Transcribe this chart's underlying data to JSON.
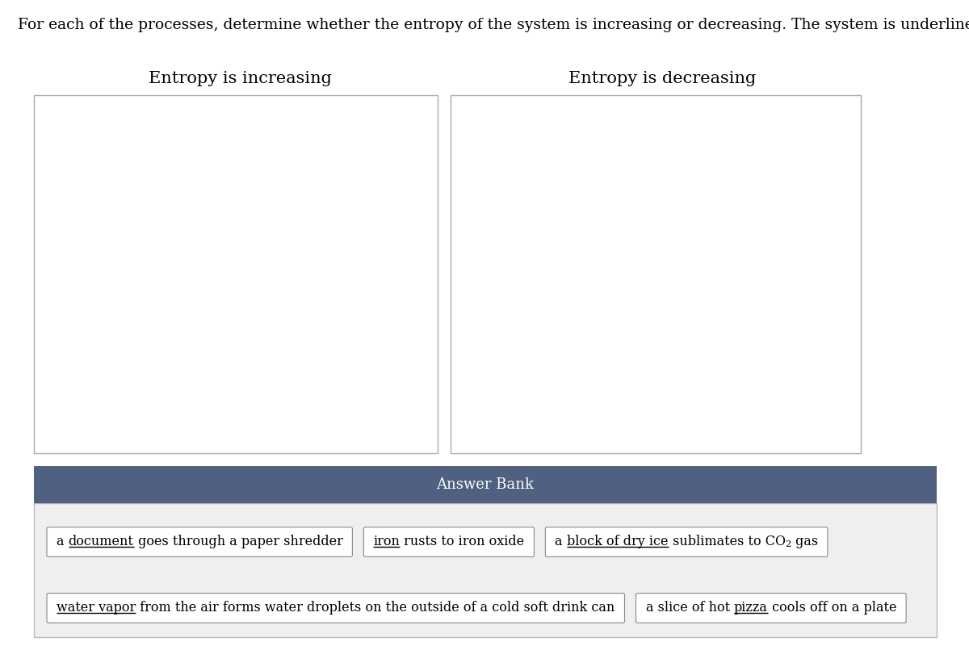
{
  "title": "For each of the processes, determine whether the entropy of the system is increasing or decreasing. The system is underlined.",
  "col1_title": "Entropy is increasing",
  "col2_title": "Entropy is decreasing",
  "answer_bank_title": "Answer Bank",
  "answer_bank_bg": "#4f6080",
  "answer_bank_content_bg": "#efefef",
  "box_bg": "#ffffff",
  "box_border": "#aaaaaa",
  "fig_bg": "#ffffff",
  "title_fontsize": 13.5,
  "col_title_fontsize": 15,
  "answer_bank_title_fontsize": 13,
  "answer_item_fontsize": 11.5,
  "items": [
    {
      "text_parts": [
        {
          "text": "a ",
          "underline": false
        },
        {
          "text": "document",
          "underline": true
        },
        {
          "text": " goes through a paper shredder",
          "underline": false
        }
      ],
      "row": 0,
      "col": 0
    },
    {
      "text_parts": [
        {
          "text": "iron",
          "underline": true
        },
        {
          "text": " rusts to iron oxide",
          "underline": false
        }
      ],
      "row": 0,
      "col": 1
    },
    {
      "text_parts": [
        {
          "text": "a ",
          "underline": false
        },
        {
          "text": "block of dry ice",
          "underline": true
        },
        {
          "text": " sublimates to CO",
          "underline": false
        },
        {
          "text": "2",
          "underline": false,
          "subscript": true
        },
        {
          "text": " gas",
          "underline": false
        }
      ],
      "row": 0,
      "col": 2
    },
    {
      "text_parts": [
        {
          "text": "water vapor",
          "underline": true
        },
        {
          "text": " from the air forms water droplets on the outside of a cold soft drink can",
          "underline": false
        }
      ],
      "row": 1,
      "col": 0
    },
    {
      "text_parts": [
        {
          "text": "a slice of hot ",
          "underline": false
        },
        {
          "text": "pizza",
          "underline": true
        },
        {
          "text": " cools off on a plate",
          "underline": false
        }
      ],
      "row": 1,
      "col": 1
    }
  ]
}
